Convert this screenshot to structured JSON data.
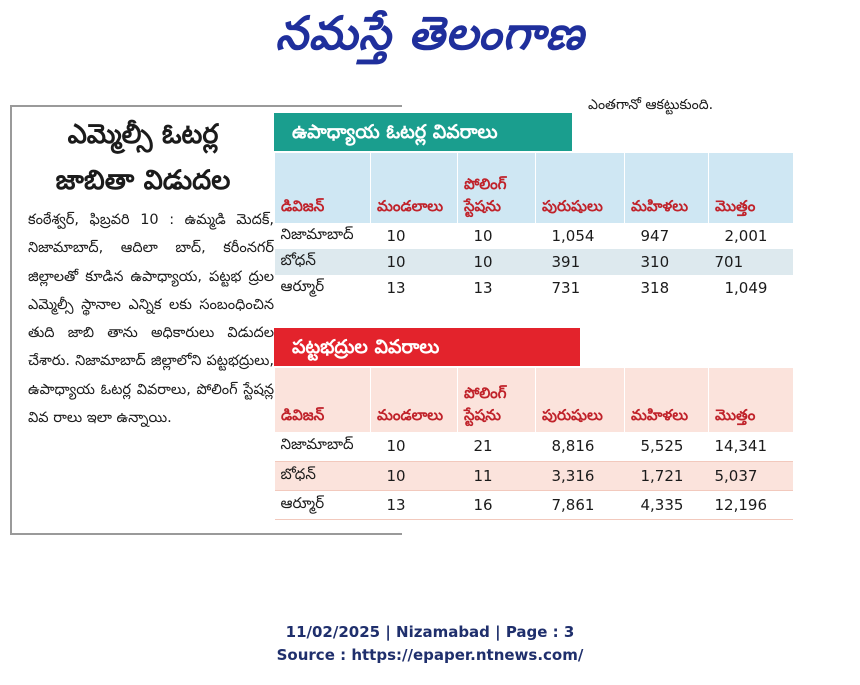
{
  "masthead": {
    "title": "నమస్తే తెలంగాణ"
  },
  "snippet": "ఎంతగానో ఆకట్టుకుంది.",
  "article": {
    "headline_line1": "ఎమ్మెల్సీ ఓటర్ల",
    "headline_line2": "జాబితా విడుదల",
    "body": "కంఠేశ్వర్‌, ఫిబ్రవరి 10 : ఉమ్మడి మెదక్‌, నిజామాబాద్‌, ఆదిలా బాద్‌, కరీంనగర్‌ జిల్లాలతో కూడిన ఉపాధ్యాయ, పట్టభ ద్రుల ఎమ్మెల్సీ స్థానాల ఎన్నిక లకు సంబంధించిన తుది జాబి తాను అధికారులు విడుదల చేశారు. నిజామాబాద్‌ జిల్లాలోని పట్టభద్రులు, ఉపాధ్యాయ ఓటర్ల వివరాలు, పోలింగ్‌ స్టేషన్ల వివ రాలు ఇలా ఉన్నాయి."
  },
  "teachers": {
    "title": "ఉపాధ్యాయ ఓటర్ల వివరాలు",
    "headers": [
      "డివిజన్‌",
      "మండలాలు",
      "పోలింగ్‌ స్టేషను",
      "పురుషులు",
      "మహిళలు",
      "మొత్తం"
    ],
    "rows": [
      [
        "నిజామాబాద్‌",
        "10",
        "10",
        "1,054",
        "947",
        "2,001"
      ],
      [
        "బోధన్‌",
        "10",
        "10",
        "391",
        "310",
        "701"
      ],
      [
        "ఆర్మూర్‌",
        "13",
        "13",
        "731",
        "318",
        "1,049"
      ]
    ]
  },
  "graduates": {
    "title": "పట్టభద్రుల వివరాలు",
    "headers": [
      "డివిజన్‌",
      "మండలాలు",
      "పోలింగ్‌ స్టేషను",
      "పురుషులు",
      "మహిళలు",
      "మొత్తం"
    ],
    "rows": [
      [
        "నిజామాబాద్‌",
        "10",
        "21",
        "8,816",
        "5,525",
        "14,341"
      ],
      [
        "బోధన్‌",
        "10",
        "11",
        "3,316",
        "1,721",
        "5,037"
      ],
      [
        "ఆర్మూర్‌",
        "13",
        "16",
        "7,861",
        "4,335",
        "12,196"
      ]
    ]
  },
  "footer": {
    "line1": "11/02/2025 | Nizamabad | Page : 3",
    "line2": "Source : https://epaper.ntnews.com/"
  }
}
